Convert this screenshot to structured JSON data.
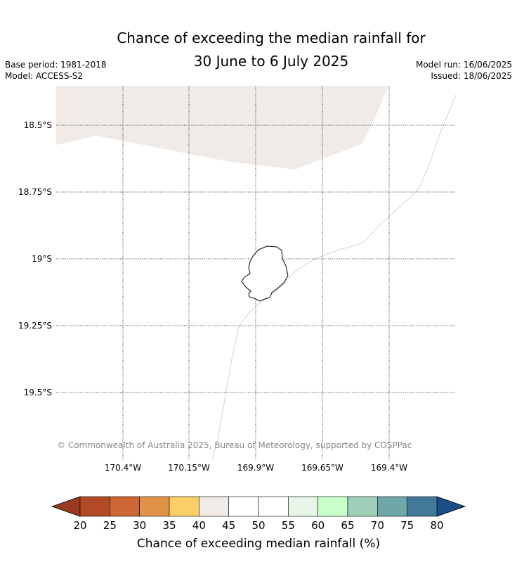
{
  "title_line1": "Chance of exceeding the median rainfall for",
  "title_line2": "30 June to 6 July 2025",
  "meta_left": [
    "Base period: 1981-2018",
    "Model: ACCESS-S2"
  ],
  "meta_right": [
    "Model run: 16/06/2025",
    "Issued: 18/06/2025"
  ],
  "lat_labels": [
    "18.5°S",
    "18.75°S",
    "19°S",
    "19.25°S",
    "19.5°S"
  ],
  "lon_labels": [
    "170.4°W",
    "170.15°W",
    "169.9°W",
    "169.65°W",
    "169.4°W"
  ],
  "copyright": "© Commonwealth of Australia 2025, Bureau of Meteorology, supported by COSPPac",
  "colorbar": {
    "ticks": [
      "20",
      "25",
      "30",
      "35",
      "40",
      "45",
      "50",
      "55",
      "60",
      "65",
      "70",
      "75",
      "80"
    ],
    "colors": [
      "#b34a27",
      "#cc6633",
      "#e09348",
      "#fcce68",
      "#f0ebe6",
      "#ffffff",
      "#ffffff",
      "#e8f5e9",
      "#c9fdca",
      "#9fcfb8",
      "#6fa6a7",
      "#42799a"
    ],
    "under_color": "#9a3a20",
    "over_color": "#1a4f86",
    "label": "Chance of exceeding median rainfall (%)"
  },
  "map_fill_color": "#f0ebe6",
  "island_name": ""
}
